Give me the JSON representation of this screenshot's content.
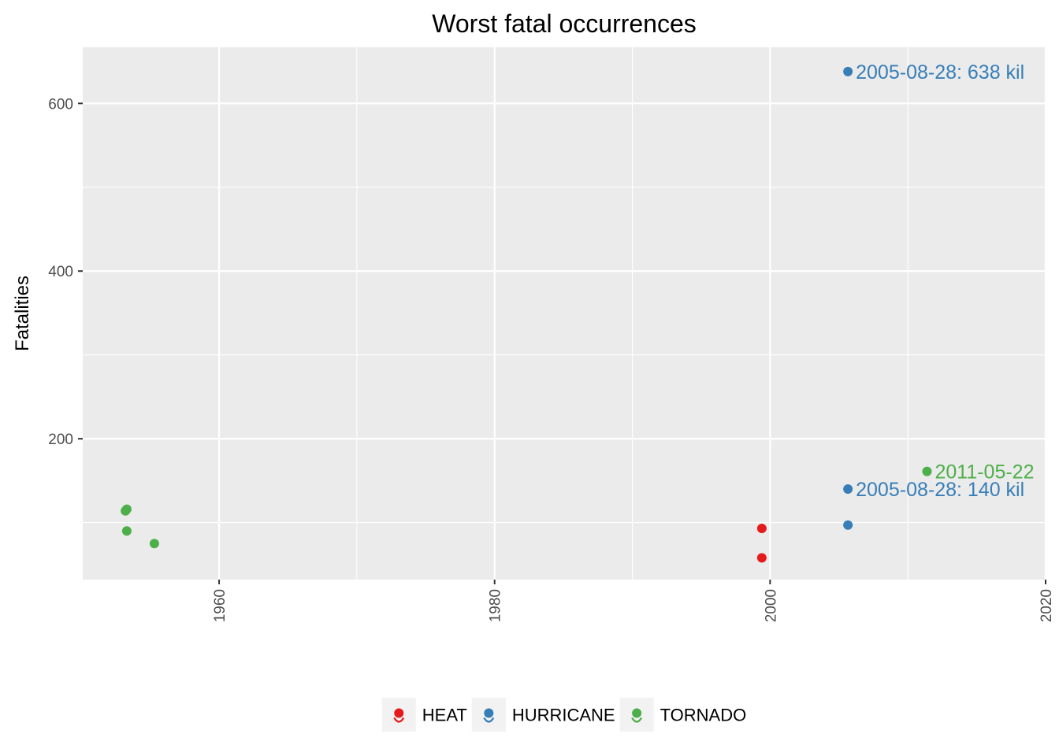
{
  "chart_data": {
    "type": "scatter",
    "title": "Worst fatal occurrences",
    "xlabel": "",
    "ylabel": "Fatalities",
    "xlim": [
      1950.1,
      2020
    ],
    "ylim": [
      32,
      667
    ],
    "x_major_ticks": [
      1960,
      1980,
      2000,
      2020
    ],
    "x_minor_ticks": [
      1970,
      1990,
      2010
    ],
    "y_major_ticks": [
      200,
      400,
      600
    ],
    "y_minor_ticks": [
      100,
      300,
      500
    ],
    "grid": true,
    "legend_position": "bottom",
    "series": [
      {
        "name": "HEAT",
        "color": "#e41a1c",
        "points": [
          {
            "x": 1999.4,
            "y": 93
          },
          {
            "x": 1999.4,
            "y": 58
          }
        ]
      },
      {
        "name": "HURRICANE",
        "color": "#377eb8",
        "points": [
          {
            "x": 2005.65,
            "y": 638,
            "label": "2005-08-28: 638 kil"
          },
          {
            "x": 2005.65,
            "y": 140,
            "label": "2005-08-28: 140 kil"
          },
          {
            "x": 2005.65,
            "y": 97
          }
        ]
      },
      {
        "name": "TORNADO",
        "color": "#4daf4a",
        "points": [
          {
            "x": 2011.39,
            "y": 161,
            "label": "2011-05-22"
          },
          {
            "x": 1953.3,
            "y": 116
          },
          {
            "x": 1953.2,
            "y": 114
          },
          {
            "x": 1953.3,
            "y": 90
          },
          {
            "x": 1955.3,
            "y": 75
          }
        ]
      }
    ]
  }
}
